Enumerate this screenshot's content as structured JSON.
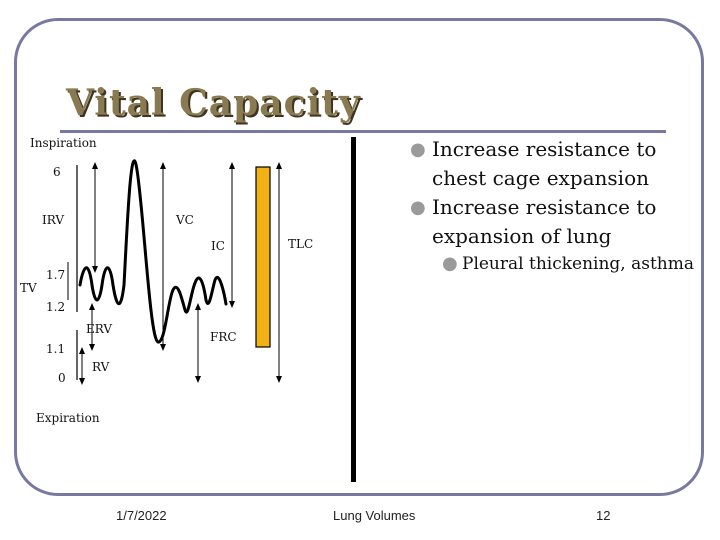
{
  "slide": {
    "title": "Vital Capacity",
    "bullets": [
      {
        "text": "Increase resistance to chest cage expansion",
        "sub": []
      },
      {
        "text": "Increase resistance to expansion of lung",
        "sub": [
          "Pleural thickening, asthma"
        ]
      }
    ],
    "footer": {
      "date": "1/7/2022",
      "center": "Lung Volumes",
      "page": "12"
    }
  },
  "diagram": {
    "labels": {
      "inspiration": "Inspiration",
      "expiration": "Expiration",
      "irv": "IRV",
      "vc": "VC",
      "ic": "IC",
      "tlc": "TLC",
      "tv": "TV",
      "erv": "ERV",
      "frc": "FRC",
      "rv": "RV"
    },
    "axis_ticks": [
      "6",
      "1.7",
      "1.2",
      "1.1",
      "0"
    ],
    "colors": {
      "tlc_bar": "#f2b215",
      "axis": "#000000",
      "frame": "#7878a0"
    }
  }
}
